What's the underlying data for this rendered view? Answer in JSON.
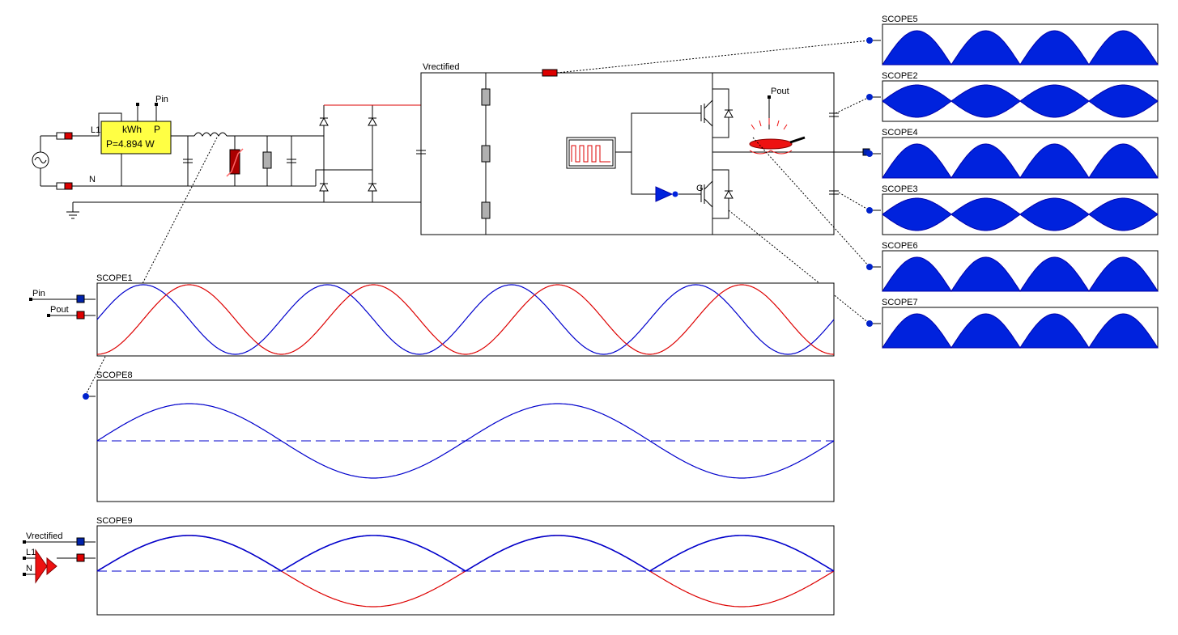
{
  "circuit": {
    "node_l1": "L1",
    "node_n": "N",
    "meter": {
      "unit": "kWh",
      "p_label": "P",
      "reading": "P=4.894 W"
    },
    "probe_pin": "Pin",
    "probe_pout": "Pout",
    "bus_label": "Vrectified"
  },
  "colors": {
    "blue": "#0000cc",
    "red": "#dd0000",
    "fill_blue": "#0022dd",
    "meter_yellow": "#ffff44",
    "resistor_grey": "#b0b0b0",
    "varistor": "#aa0000"
  },
  "scopes": [
    {
      "id": "scope1",
      "title": "SCOPE1",
      "inputs": [
        "Pin",
        "Pout"
      ]
    },
    {
      "id": "scope8",
      "title": "SCOPE8",
      "inputs": []
    },
    {
      "id": "scope9",
      "title": "SCOPE9",
      "inputs": [
        "Vrectified",
        "L1",
        "N"
      ]
    },
    {
      "id": "scope5",
      "title": "SCOPE5"
    },
    {
      "id": "scope2",
      "title": "SCOPE2"
    },
    {
      "id": "scope4",
      "title": "SCOPE4"
    },
    {
      "id": "scope3",
      "title": "SCOPE3"
    },
    {
      "id": "scope6",
      "title": "SCOPE6"
    },
    {
      "id": "scope7",
      "title": "SCOPE7"
    }
  ],
  "chart_data": [
    {
      "type": "line",
      "title": "SCOPE1",
      "series": [
        {
          "name": "Pin",
          "shape": "rectified-sine",
          "humps": 4,
          "phase_lead": 0.25
        },
        {
          "name": "Pout",
          "shape": "rectified-sine",
          "humps": 4,
          "phase_lead": 0
        }
      ]
    },
    {
      "type": "line",
      "title": "SCOPE8",
      "series": [
        {
          "shape": "sine",
          "periods": 2
        }
      ],
      "zero_line": true
    },
    {
      "type": "line",
      "title": "SCOPE9",
      "series": [
        {
          "name": "Vrectified",
          "shape": "rectified-sine",
          "humps": 4
        },
        {
          "name": "L1-N",
          "shape": "sine",
          "periods": 2
        }
      ],
      "zero_line": true
    },
    {
      "type": "area",
      "title": "SCOPE5",
      "shape": "rectified-sine",
      "humps": 4
    },
    {
      "type": "area",
      "title": "SCOPE2",
      "shape": "envelope",
      "humps": 4
    },
    {
      "type": "area",
      "title": "SCOPE4",
      "shape": "rectified-sine",
      "humps": 4
    },
    {
      "type": "area",
      "title": "SCOPE3",
      "shape": "envelope",
      "humps": 4
    },
    {
      "type": "area",
      "title": "SCOPE6",
      "shape": "rectified-sine",
      "humps": 4
    },
    {
      "type": "area",
      "title": "SCOPE7",
      "shape": "rectified-sine",
      "humps": 4
    }
  ]
}
